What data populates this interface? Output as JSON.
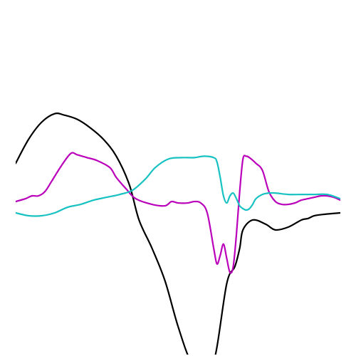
{
  "chart_data": {
    "type": "line",
    "title": "",
    "xlabel": "",
    "ylabel": "",
    "grid": false,
    "legend": "none",
    "xlim": [
      0,
      100
    ],
    "ylim": [
      -1,
      1
    ],
    "series": [
      {
        "color": "#000000",
        "x": [
          0,
          4,
          8,
          12,
          15,
          19,
          23,
          27,
          31,
          35,
          38,
          42,
          46,
          50,
          54,
          57,
          61,
          65,
          67.5,
          69,
          70,
          73,
          77,
          80,
          84,
          88,
          90,
          92,
          95,
          100
        ],
        "y": [
          0.35,
          0.52,
          0.64,
          0.7,
          0.69,
          0.66,
          0.6,
          0.52,
          0.4,
          0.2,
          -0.05,
          -0.25,
          -0.48,
          -0.8,
          -1.05,
          -1.05,
          -1.05,
          -0.5,
          -0.38,
          -0.25,
          -0.12,
          -0.05,
          -0.08,
          -0.12,
          -0.1,
          -0.05,
          -0.04,
          -0.02,
          -0.01,
          0.0
        ]
      },
      {
        "color": "#bb00bb",
        "x": [
          0,
          3,
          5,
          7,
          9,
          11,
          14,
          17,
          19,
          22,
          25,
          29,
          31,
          34,
          37,
          42,
          46,
          48,
          50,
          53,
          55,
          57,
          59,
          61,
          62,
          63,
          64,
          65,
          66,
          67,
          68,
          69,
          70,
          71,
          72,
          74,
          76,
          78,
          80,
          82,
          84,
          86,
          88,
          90,
          92,
          94,
          96,
          98,
          100
        ],
        "y": [
          0.08,
          0.1,
          0.12,
          0.12,
          0.15,
          0.22,
          0.33,
          0.42,
          0.41,
          0.39,
          0.37,
          0.32,
          0.25,
          0.17,
          0.1,
          0.06,
          0.05,
          0.08,
          0.07,
          0.07,
          0.08,
          0.07,
          0.0,
          -0.25,
          -0.36,
          -0.3,
          -0.22,
          -0.32,
          -0.42,
          -0.38,
          -0.15,
          0.15,
          0.38,
          0.4,
          0.39,
          0.35,
          0.3,
          0.15,
          0.08,
          0.06,
          0.06,
          0.07,
          0.09,
          0.1,
          0.11,
          0.12,
          0.12,
          0.11,
          0.09
        ]
      },
      {
        "color": "#18c2c2",
        "x": [
          0,
          4,
          8,
          12,
          16,
          20,
          24,
          28,
          32,
          36,
          40,
          43,
          47,
          51,
          55,
          58,
          61,
          62,
          63,
          64,
          65,
          66,
          67,
          68,
          69,
          70,
          71,
          72,
          73,
          74,
          76,
          78,
          80,
          84,
          88,
          92,
          96,
          100
        ],
        "y": [
          0.0,
          -0.02,
          -0.02,
          0.0,
          0.04,
          0.06,
          0.09,
          0.11,
          0.13,
          0.16,
          0.24,
          0.32,
          0.38,
          0.39,
          0.39,
          0.4,
          0.39,
          0.36,
          0.25,
          0.12,
          0.07,
          0.12,
          0.14,
          0.1,
          0.05,
          0.03,
          0.02,
          0.03,
          0.06,
          0.1,
          0.13,
          0.14,
          0.14,
          0.13,
          0.13,
          0.13,
          0.13,
          0.1
        ]
      }
    ]
  }
}
